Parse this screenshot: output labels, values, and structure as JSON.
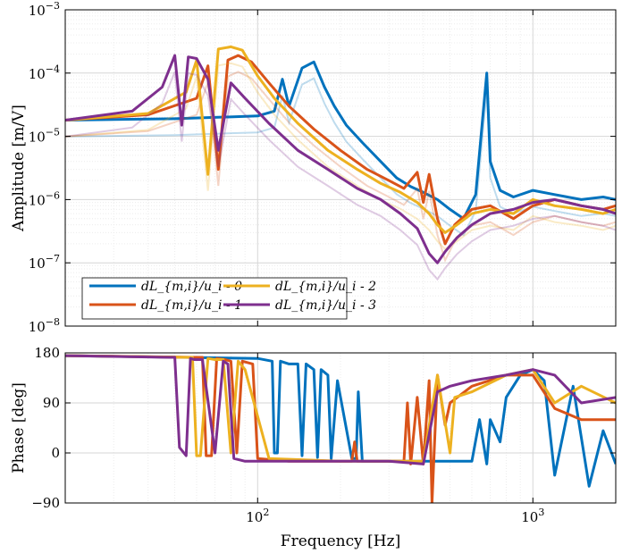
{
  "chart_data": [
    {
      "type": "line",
      "id": "amplitude",
      "ylabel": "Amplitude [m/V]",
      "xscale": "log",
      "yscale": "log",
      "xlim": [
        20,
        2000
      ],
      "ylim": [
        1e-08,
        0.001
      ],
      "y_tick_labels": [
        "10^-8",
        "10^-7",
        "10^-6",
        "10^-5",
        "10^-4",
        "10^-3"
      ],
      "grid": true,
      "legend_placement": "bottom-left",
      "series": [
        {
          "name": "dL_{m,i}/u_i - 0",
          "color": "#0072BD",
          "x": [
            20,
            50,
            100,
            115,
            123,
            130,
            145,
            160,
            175,
            190,
            210,
            240,
            280,
            320,
            360,
            400,
            450,
            500,
            560,
            620,
            680,
            700,
            760,
            850,
            1000,
            1200,
            1500,
            1800,
            2000
          ],
          "y": [
            1.8e-05,
            1.9e-05,
            2.1e-05,
            2.5e-05,
            8e-05,
            3e-05,
            0.00012,
            0.00015,
            6e-05,
            3e-05,
            1.5e-05,
            8e-06,
            4e-06,
            2.2e-06,
            1.6e-06,
            1.3e-06,
            1e-06,
            7e-07,
            5e-07,
            1.2e-06,
            0.0001,
            4e-06,
            1.4e-06,
            1.1e-06,
            1.4e-06,
            1.2e-06,
            1e-06,
            1.1e-06,
            1e-06
          ]
        },
        {
          "name": "dL_{m,i}/u_i - 1",
          "color": "#D95319",
          "x": [
            20,
            40,
            60,
            66,
            72,
            78,
            85,
            95,
            110,
            130,
            160,
            200,
            250,
            300,
            340,
            380,
            400,
            420,
            450,
            480,
            520,
            600,
            700,
            850,
            1000,
            1200,
            1500,
            1800,
            2000
          ],
          "y": [
            1.8e-05,
            2.2e-05,
            4e-05,
            0.00013,
            3e-06,
            0.00016,
            0.00019,
            0.00015,
            7e-05,
            3e-05,
            1.3e-05,
            6e-06,
            3e-06,
            2e-06,
            1.5e-06,
            2.7e-06,
            9e-07,
            2.5e-06,
            5e-07,
            2e-07,
            4e-07,
            7e-07,
            8e-07,
            5e-07,
            8e-07,
            1e-06,
            8e-07,
            7e-07,
            8e-07
          ]
        },
        {
          "name": "dL_{m,i}/u_i - 2",
          "color": "#EDB120",
          "x": [
            20,
            40,
            55,
            60,
            66,
            72,
            80,
            88,
            100,
            115,
            140,
            180,
            230,
            280,
            330,
            380,
            420,
            450,
            480,
            530,
            600,
            700,
            850,
            1000,
            1200,
            1500,
            1800,
            2000
          ],
          "y": [
            1.8e-05,
            2.3e-05,
            5e-05,
            0.00016,
            2.5e-06,
            0.00024,
            0.00026,
            0.00023,
            9e-05,
            4e-05,
            1.6e-05,
            6e-06,
            3e-06,
            1.8e-06,
            1.3e-06,
            9e-07,
            6e-07,
            4e-07,
            3e-07,
            4e-07,
            6e-07,
            7e-07,
            6e-07,
            1e-06,
            8e-07,
            7e-07,
            6e-07,
            7e-07
          ]
        },
        {
          "name": "dL_{m,i}/u_i - 3",
          "color": "#7E2F8E",
          "x": [
            20,
            35,
            45,
            50,
            53,
            56,
            60,
            66,
            72,
            80,
            90,
            110,
            140,
            180,
            230,
            280,
            330,
            380,
            420,
            450,
            480,
            530,
            600,
            700,
            850,
            1000,
            1200,
            1500,
            1800,
            2000
          ],
          "y": [
            1.8e-05,
            2.5e-05,
            6e-05,
            0.00019,
            1.5e-05,
            0.00018,
            0.00017,
            8e-05,
            6e-06,
            7e-05,
            4e-05,
            1.6e-05,
            6e-06,
            3e-06,
            1.5e-06,
            1e-06,
            6e-07,
            3.5e-07,
            1.4e-07,
            1e-07,
            1.5e-07,
            2.5e-07,
            4e-07,
            6e-07,
            7e-07,
            9e-07,
            1e-06,
            8e-07,
            7e-07,
            6e-07
          ]
        }
      ]
    },
    {
      "type": "line",
      "id": "phase",
      "xlabel": "Frequency [Hz]",
      "ylabel": "Phase [deg]",
      "xscale": "log",
      "xlim": [
        20,
        2000
      ],
      "ylim": [
        -90,
        180
      ],
      "y_ticks": [
        -90,
        0,
        90,
        180
      ],
      "x_tick_labels": [
        "10^2",
        "10^3"
      ],
      "grid": true,
      "series": [
        {
          "name": "dL_{m,i}/u_i - 0",
          "color": "#0072BD",
          "x": [
            20,
            100,
            113,
            115,
            118,
            121,
            130,
            140,
            145,
            150,
            160,
            165,
            170,
            180,
            185,
            195,
            220,
            228,
            232,
            240,
            300,
            400,
            500,
            600,
            640,
            680,
            700,
            760,
            800,
            900,
            1000,
            1100,
            1200,
            1400,
            1600,
            1800,
            2000
          ],
          "y": [
            175,
            170,
            165,
            0,
            0,
            165,
            160,
            160,
            -5,
            160,
            150,
            -8,
            150,
            140,
            -10,
            130,
            -10,
            -10,
            110,
            -15,
            -15,
            -15,
            -15,
            -15,
            60,
            -20,
            60,
            20,
            100,
            140,
            150,
            130,
            -40,
            120,
            -60,
            40,
            -20
          ]
        },
        {
          "name": "dL_{m,i}/u_i - 1",
          "color": "#D95319",
          "x": [
            20,
            60,
            63,
            65,
            68,
            71,
            76,
            80,
            84,
            88,
            96,
            100,
            130,
            220,
            225,
            230,
            300,
            340,
            350,
            360,
            380,
            400,
            420,
            430,
            450,
            480,
            500,
            600,
            800,
            1000,
            1200,
            1500,
            2000
          ],
          "y": [
            175,
            172,
            172,
            -5,
            -5,
            170,
            168,
            165,
            0,
            165,
            160,
            -10,
            -15,
            -15,
            20,
            -15,
            -15,
            -15,
            90,
            -20,
            100,
            -20,
            130,
            -90,
            140,
            50,
            90,
            120,
            140,
            140,
            80,
            60,
            60
          ]
        },
        {
          "name": "dL_{m,i}/u_i - 2",
          "color": "#EDB120",
          "x": [
            20,
            55,
            58,
            60,
            62,
            66,
            70,
            75,
            80,
            85,
            90,
            110,
            200,
            300,
            400,
            450,
            500,
            520,
            600,
            800,
            1000,
            1200,
            1500,
            2000
          ],
          "y": [
            175,
            172,
            172,
            -5,
            -5,
            170,
            168,
            168,
            0,
            165,
            150,
            -10,
            -15,
            -15,
            -15,
            140,
            0,
            100,
            110,
            140,
            150,
            90,
            120,
            90
          ]
        },
        {
          "name": "dL_{m,i}/u_i - 3",
          "color": "#7E2F8E",
          "x": [
            20,
            48,
            50,
            52,
            55,
            57,
            59,
            63,
            70,
            75,
            78,
            82,
            90,
            200,
            300,
            400,
            450,
            500,
            600,
            800,
            1000,
            1200,
            1500,
            2000
          ],
          "y": [
            175,
            172,
            172,
            10,
            -5,
            170,
            168,
            168,
            0,
            165,
            160,
            -10,
            -15,
            -15,
            -15,
            -20,
            110,
            120,
            130,
            140,
            150,
            140,
            90,
            100
          ]
        }
      ]
    }
  ]
}
